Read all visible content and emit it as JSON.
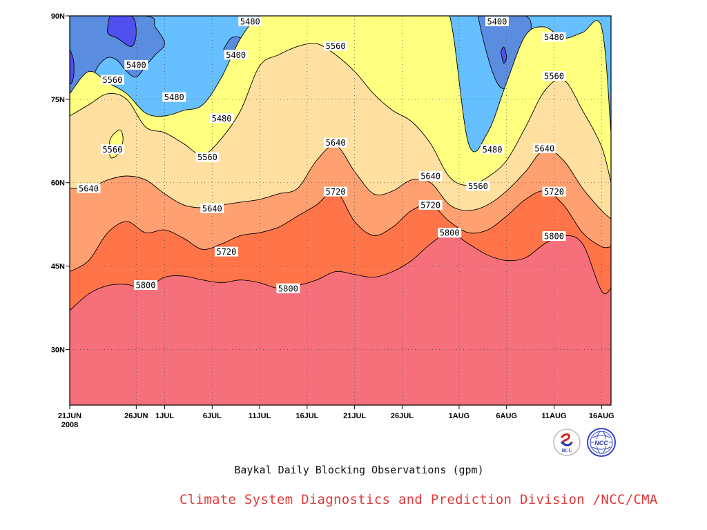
{
  "chart_data": {
    "type": "contour",
    "caption": "Baykal Daily Blocking Observations (gpm)",
    "xlim": [
      0,
      57
    ],
    "ylim": [
      20,
      90
    ],
    "x_ticks": [
      {
        "day": 0,
        "label": "21JUN",
        "sub": "2008"
      },
      {
        "day": 7,
        "label": "26JUN"
      },
      {
        "day": 10,
        "label": "1JUL"
      },
      {
        "day": 15,
        "label": "6JUL"
      },
      {
        "day": 20,
        "label": "11JUL"
      },
      {
        "day": 25,
        "label": "16JUL"
      },
      {
        "day": 30,
        "label": "21JUL"
      },
      {
        "day": 35,
        "label": "26JUL"
      },
      {
        "day": 41,
        "label": "1AUG"
      },
      {
        "day": 46,
        "label": "6AUG"
      },
      {
        "day": 51,
        "label": "11AUG"
      },
      {
        "day": 56,
        "label": "16AUG"
      }
    ],
    "y_ticks": [
      {
        "lat": 30,
        "label": "30N"
      },
      {
        "lat": 45,
        "label": "45N"
      },
      {
        "lat": 60,
        "label": "60N"
      },
      {
        "lat": 75,
        "label": "75N"
      },
      {
        "lat": 90,
        "label": "90N"
      }
    ],
    "days": [
      0,
      2,
      4,
      6,
      8,
      10,
      12,
      14,
      16,
      18,
      20,
      22,
      24,
      26,
      28,
      30,
      32,
      34,
      36,
      38,
      40,
      42,
      44,
      46,
      48,
      50,
      52,
      54,
      56,
      57
    ],
    "band_colors": {
      "below_5400": "#5a8de0",
      "5400_5480": "#66bfff",
      "5480_5560": "#ffff80",
      "5560_5640": "#ffe0a0",
      "5640_5720": "#ffa070",
      "5720_5800": "#ff7448",
      "above_5800": "#f5707a",
      "low_5320": "#5050ee"
    },
    "contours": [
      {
        "level": 5800,
        "lat": [
          37,
          40,
          41.5,
          41.7,
          41,
          43,
          43.2,
          42.5,
          42,
          42.5,
          42,
          41,
          41.5,
          42.5,
          44,
          43.5,
          43,
          44,
          46,
          49,
          51,
          49,
          47,
          46,
          46.5,
          49,
          50.5,
          49,
          40.5,
          41
        ]
      },
      {
        "level": 5720,
        "lat": [
          44,
          46,
          51,
          53,
          51,
          51.5,
          50,
          48,
          49,
          50.5,
          51,
          52,
          54,
          56,
          58.5,
          53,
          50.5,
          52,
          55,
          56,
          53,
          51,
          51.5,
          54,
          57,
          58.5,
          56,
          51,
          48.5,
          48.5
        ]
      },
      {
        "level": 5640,
        "lat": [
          59,
          59,
          60.5,
          61.2,
          60.5,
          58,
          56,
          55.5,
          56,
          56.5,
          57,
          58,
          59,
          64,
          66.7,
          62,
          58,
          58.5,
          60.5,
          60,
          56,
          55,
          56,
          58.5,
          62,
          66,
          64,
          59,
          55,
          53.5
        ]
      },
      {
        "level": 5560,
        "lat": [
          72,
          74,
          76,
          75,
          70,
          69,
          67,
          65,
          68,
          73,
          81,
          83,
          84.5,
          85,
          83,
          80,
          76,
          73,
          71,
          67,
          61,
          59.5,
          61,
          64,
          70,
          76.5,
          78.5,
          73,
          66.5,
          60
        ]
      },
      {
        "level": 5480,
        "lat": [
          76,
          80,
          78,
          76,
          72.5,
          72,
          73,
          74,
          79,
          86,
          90,
          90,
          90,
          90,
          90,
          90,
          90,
          90,
          90,
          90,
          90,
          67,
          69,
          78,
          86.5,
          88,
          86,
          87,
          88,
          69
        ]
      }
    ],
    "labels": [
      {
        "text": "5800",
        "day": 8,
        "lat": 41.6
      },
      {
        "text": "5800",
        "day": 23,
        "lat": 41.0
      },
      {
        "text": "5800",
        "day": 40,
        "lat": 51.0
      },
      {
        "text": "5800",
        "day": 51,
        "lat": 50.4
      },
      {
        "text": "5720",
        "day": 16.5,
        "lat": 47.6
      },
      {
        "text": "5720",
        "day": 28,
        "lat": 58.4
      },
      {
        "text": "5720",
        "day": 38,
        "lat": 56.0
      },
      {
        "text": "5720",
        "day": 51,
        "lat": 58.4
      },
      {
        "text": "5640",
        "day": 2,
        "lat": 59.0
      },
      {
        "text": "5640",
        "day": 15,
        "lat": 55.4
      },
      {
        "text": "5640",
        "day": 28,
        "lat": 67.2
      },
      {
        "text": "5640",
        "day": 38,
        "lat": 61.2
      },
      {
        "text": "5640",
        "day": 50,
        "lat": 66.2
      },
      {
        "text": "5560",
        "day": 4.5,
        "lat": 78.5
      },
      {
        "text": "5560",
        "day": 4.5,
        "lat": 66.0
      },
      {
        "text": "5560",
        "day": 14.5,
        "lat": 64.6
      },
      {
        "text": "5560",
        "day": 28,
        "lat": 84.6
      },
      {
        "text": "5560",
        "day": 43,
        "lat": 59.4
      },
      {
        "text": "5560",
        "day": 51,
        "lat": 79.2
      },
      {
        "text": "5480",
        "day": 11,
        "lat": 75.4
      },
      {
        "text": "5480",
        "day": 16,
        "lat": 71.6
      },
      {
        "text": "5480",
        "day": 19,
        "lat": 89.0
      },
      {
        "text": "5480",
        "day": 44.5,
        "lat": 66.0
      },
      {
        "text": "5480",
        "day": 51,
        "lat": 86.2
      },
      {
        "text": "5400",
        "day": 7,
        "lat": 81.2
      },
      {
        "text": "5400",
        "day": 17.5,
        "lat": 83.0
      },
      {
        "text": "5400",
        "day": 45,
        "lat": 89.0
      }
    ],
    "pockets": [
      {
        "level": 5400,
        "points": [
          [
            0,
            90
          ],
          [
            0,
            76.5
          ],
          [
            2,
            78
          ],
          [
            3,
            81
          ],
          [
            4,
            82.5
          ],
          [
            5,
            82
          ],
          [
            6,
            80
          ],
          [
            7,
            79
          ],
          [
            8,
            81
          ],
          [
            9,
            83
          ],
          [
            10,
            85
          ],
          [
            9,
            88
          ],
          [
            8,
            90
          ]
        ]
      },
      {
        "level": 5320,
        "points": [
          [
            0,
            84
          ],
          [
            0.4,
            82
          ],
          [
            0.4,
            79
          ],
          [
            0,
            78
          ]
        ]
      },
      {
        "level": 5320,
        "points": [
          [
            4.2,
            90
          ],
          [
            4,
            87
          ],
          [
            5,
            86
          ],
          [
            6.5,
            84.5
          ],
          [
            7,
            87
          ],
          [
            6.5,
            90
          ]
        ]
      },
      {
        "level": 5400,
        "points": [
          [
            16.2,
            84
          ],
          [
            17,
            82
          ],
          [
            18,
            82
          ],
          [
            18.6,
            84
          ],
          [
            18,
            86
          ],
          [
            17,
            86
          ]
        ]
      },
      {
        "level": 5400,
        "points": [
          [
            43,
            90
          ],
          [
            43.5,
            86
          ],
          [
            44.5,
            80
          ],
          [
            45.5,
            77
          ],
          [
            47,
            78
          ],
          [
            48,
            82
          ],
          [
            48.5,
            86
          ],
          [
            48,
            90
          ]
        ]
      },
      {
        "level": 5320,
        "points": [
          [
            45.4,
            83.5
          ],
          [
            45.7,
            81.5
          ],
          [
            46,
            82.6
          ],
          [
            45.7,
            84.4
          ]
        ]
      },
      {
        "level": 5560,
        "points": [
          [
            4.2,
            66
          ],
          [
            4.3,
            68
          ],
          [
            5.3,
            69.5
          ],
          [
            5.6,
            67.5
          ],
          [
            5,
            65
          ],
          [
            4.3,
            64.5
          ]
        ]
      }
    ]
  }
}
